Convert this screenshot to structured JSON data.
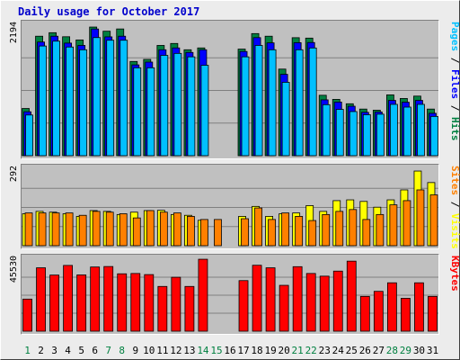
{
  "chart_data": {
    "type": "bar",
    "title": "Daily usage for October 2017",
    "colors": {
      "background": "#ececec",
      "plot_bg": "#c0c0c0",
      "grid": "#808080",
      "hits": "#008040",
      "files": "#0000ff",
      "pages": "#00c0ff",
      "visits": "#ffff00",
      "sites": "#ff8000",
      "kbytes": "#ff0000",
      "weekday_label": "#000000",
      "weekend_label": "#008040"
    },
    "categories": [
      "1",
      "2",
      "3",
      "4",
      "5",
      "6",
      "7",
      "8",
      "9",
      "10",
      "11",
      "12",
      "13",
      "14",
      "15",
      "16",
      "17",
      "18",
      "19",
      "20",
      "21",
      "22",
      "23",
      "24",
      "25",
      "26",
      "27",
      "28",
      "29",
      "30",
      "31"
    ],
    "weekend_days": [
      "1",
      "7",
      "8",
      "14",
      "15",
      "21",
      "22",
      "28",
      "29"
    ],
    "panels": [
      {
        "name": "hits-files-pages",
        "ymax_label": "2194",
        "ymax": 2194,
        "legend": [
          {
            "text": "Pages",
            "color": "#00c0ff"
          },
          {
            "text": " / ",
            "color": "#000000"
          },
          {
            "text": "Files",
            "color": "#0000ff"
          },
          {
            "text": " / ",
            "color": "#000000"
          },
          {
            "text": "Hits",
            "color": "#008040"
          }
        ],
        "series": [
          {
            "name": "Hits",
            "color": "#008040",
            "values": [
              794,
              2009,
              2068,
              2000,
              1946,
              2163,
              2093,
              2131,
              1584,
              1619,
              1854,
              1887,
              1781,
              1812,
              0,
              0,
              1792,
              2053,
              2009,
              1456,
              1984,
              1977,
              1016,
              947,
              873,
              784,
              765,
              1023,
              962,
              1002,
              784
            ]
          },
          {
            "name": "Files",
            "color": "#0000ff",
            "values": [
              739,
              1911,
              2009,
              1893,
              1854,
              2130,
              1998,
              2009,
              1527,
              1574,
              1781,
              1812,
              1736,
              1781,
              0,
              0,
              1752,
              1985,
              1897,
              1368,
              1900,
              1903,
              939,
              902,
              832,
              729,
              735,
              930,
              899,
              930,
              713
            ]
          },
          {
            "name": "Pages",
            "color": "#00c0ff",
            "values": [
              684,
              1844,
              1926,
              1827,
              1781,
              1986,
              1941,
              1941,
              1478,
              1478,
              1687,
              1720,
              1662,
              1520,
              0,
              0,
              1662,
              1854,
              1781,
              1234,
              1781,
              1811,
              858,
              779,
              742,
              689,
              698,
              863,
              817,
              863,
              660
            ]
          }
        ]
      },
      {
        "name": "visits-sites",
        "ymax_label": "292",
        "ymax": 292,
        "legend": [
          {
            "text": "Sites",
            "color": "#ff8000"
          },
          {
            "text": " / ",
            "color": "#000000"
          },
          {
            "text": "Visits",
            "color": "#ffff00"
          }
        ],
        "series": [
          {
            "name": "Visits",
            "color": "#ffff00",
            "values": [
              122,
              131,
              128,
              122,
              112,
              134,
              131,
              119,
              128,
              134,
              135,
              119,
              116,
              97,
              0,
              0,
              112,
              150,
              112,
              122,
              125,
              153,
              131,
              172,
              175,
              169,
              147,
              175,
              213,
              285,
              241
            ]
          },
          {
            "name": "Sites",
            "color": "#ff8000",
            "values": [
              125,
              125,
              125,
              125,
              116,
              131,
              128,
              122,
              106,
              134,
              128,
              125,
              112,
              100,
              100,
              0,
              103,
              144,
              100,
              125,
              112,
              96,
              119,
              131,
              138,
              100,
              119,
              156,
              172,
              213,
              194
            ]
          }
        ]
      },
      {
        "name": "kbytes",
        "ymax_label": "45530",
        "ymax": 45530,
        "legend": [
          {
            "text": "KBytes",
            "color": "#ff0000"
          }
        ],
        "series": [
          {
            "name": "KBytes",
            "color": "#ff0000",
            "values": [
              20300,
              40100,
              35500,
              41600,
              35600,
              40600,
              40900,
              36300,
              36500,
              35800,
              28300,
              34100,
              28300,
              45500,
              0,
              0,
              32000,
              41700,
              40100,
              29000,
              40800,
              36500,
              34800,
              38000,
              44300,
              22000,
              25200,
              30600,
              20800,
              30600,
              22000
            ]
          }
        ]
      }
    ]
  }
}
